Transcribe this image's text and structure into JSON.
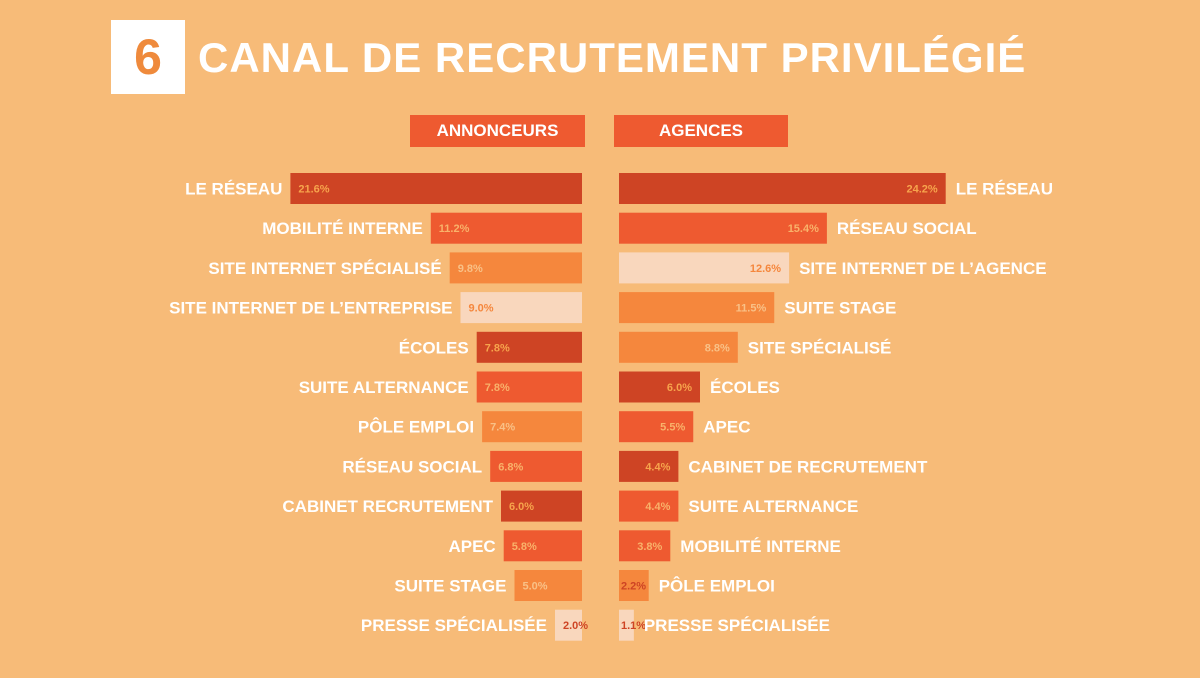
{
  "header": {
    "number": "6",
    "title": "CANAL DE RECRUTEMENT PRIVILÉGIÉ"
  },
  "colors": {
    "background": "#f7bb78",
    "dark": "#ce4424",
    "red": "#ee5a30",
    "orange": "#f5873d",
    "light": "#f9d7bd"
  },
  "chart_data": [
    {
      "type": "bar",
      "title": "ANNONCEURS",
      "orientation": "horizontal",
      "direction": "right-to-left",
      "categories": [
        "LE RÉSEAU",
        "MOBILITÉ INTERNE",
        "SITE INTERNET SPÉCIALISÉ",
        "SITE INTERNET DE L’ENTREPRISE",
        "ÉCOLES",
        "SUITE ALTERNANCE",
        "PÔLE EMPLOI",
        "RÉSEAU SOCIAL",
        "CABINET RECRUTEMENT",
        "APEC",
        "SUITE STAGE",
        "PRESSE SPÉCIALISÉE"
      ],
      "values": [
        21.6,
        11.2,
        9.8,
        9.0,
        7.8,
        7.8,
        7.4,
        6.8,
        6.0,
        5.8,
        5.0,
        2.0
      ],
      "value_labels": [
        "21.6%",
        "11.2%",
        "9.8%",
        "9.0%",
        "7.8%",
        "7.8%",
        "7.4%",
        "6.8%",
        "6.0%",
        "5.8%",
        "5.0%",
        "2.0%"
      ],
      "bar_colors": [
        "dark",
        "red",
        "orange",
        "light",
        "dark",
        "red",
        "orange",
        "red",
        "dark",
        "red",
        "orange",
        "light"
      ]
    },
    {
      "type": "bar",
      "title": "AGENCES",
      "orientation": "horizontal",
      "direction": "left-to-right",
      "categories": [
        "LE RÉSEAU",
        "RÉSEAU SOCIAL",
        "SITE INTERNET DE L’AGENCE",
        "SUITE STAGE",
        "SITE SPÉCIALISÉ",
        "ÉCOLES",
        "APEC",
        "CABINET DE RECRUTEMENT",
        "SUITE ALTERNANCE",
        "MOBILITÉ INTERNE",
        "PÔLE EMPLOI",
        "PRESSE SPÉCIALISÉE"
      ],
      "values": [
        24.2,
        15.4,
        12.6,
        11.5,
        8.8,
        6.0,
        5.5,
        4.4,
        4.4,
        3.8,
        2.2,
        1.1
      ],
      "value_labels": [
        "24.2%",
        "15.4%",
        "12.6%",
        "11.5%",
        "8.8%",
        "6.0%",
        "5.5%",
        "4.4%",
        "4.4%",
        "3.8%",
        "2.2%",
        "1.1%"
      ],
      "bar_colors": [
        "dark",
        "red",
        "light",
        "orange",
        "orange",
        "dark",
        "red",
        "dark",
        "red",
        "red",
        "orange",
        "light"
      ]
    }
  ]
}
